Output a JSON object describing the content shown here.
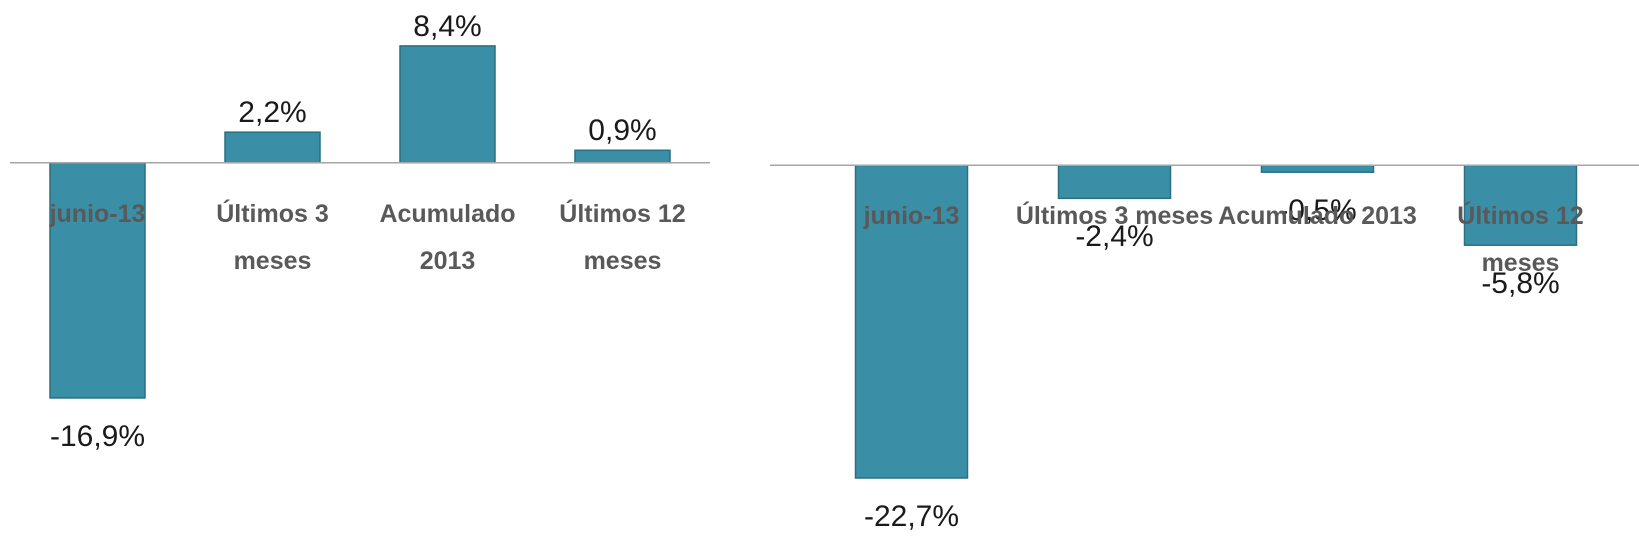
{
  "chart_data": [
    {
      "type": "bar",
      "categories": [
        "junio-13",
        "Últimos 3 meses",
        "Acumulado 2013",
        "Últimos 12 meses"
      ],
      "values": [
        -16.9,
        2.2,
        8.4,
        0.9
      ],
      "value_labels": [
        "-16,9%",
        "2,2%",
        "8,4%",
        "0,9%"
      ],
      "color": "#3a8ea5",
      "ylim": [
        -27.9,
        11.7
      ]
    },
    {
      "type": "bar",
      "categories": [
        "junio-13",
        "Últimos 3 meses",
        "Acumulado 2013",
        "Últimos 12 meses"
      ],
      "values": [
        -22.7,
        -2.4,
        -0.5,
        -5.8
      ],
      "value_labels": [
        "-22,7%",
        "-2,4%",
        "-0,5%",
        "-5,8%"
      ],
      "color": "#3a8ea5",
      "ylim": [
        -28,
        12
      ]
    }
  ]
}
